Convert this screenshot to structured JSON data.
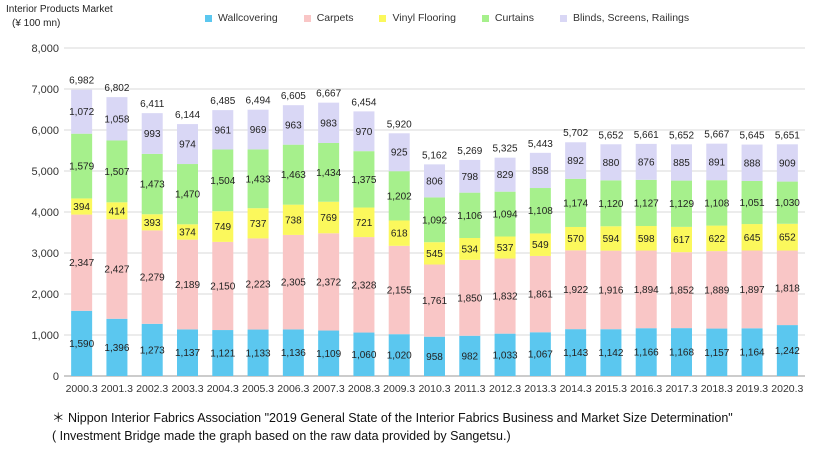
{
  "chart_data": {
    "type": "bar",
    "stacked": true,
    "title": "Interior Products Market",
    "unit": "(¥ 100 mn)",
    "categories": [
      "2000.3",
      "2001.3",
      "2002.3",
      "2003.3",
      "2004.3",
      "2005.3",
      "2006.3",
      "2007.3",
      "2008.3",
      "2009.3",
      "2010.3",
      "2011.3",
      "2012.3",
      "2013.3",
      "2014.3",
      "2015.3",
      "2016.3",
      "2017.3",
      "2018.3",
      "2019.3",
      "2020.3"
    ],
    "series": [
      {
        "name": "Wallcovering",
        "color": "#5bc7ef",
        "values": [
          1590,
          1396,
          1273,
          1137,
          1121,
          1133,
          1136,
          1109,
          1060,
          1020,
          958,
          982,
          1033,
          1067,
          1143,
          1142,
          1166,
          1168,
          1157,
          1164,
          1242
        ]
      },
      {
        "name": "Carpets",
        "color": "#f9c6c6",
        "values": [
          2347,
          2427,
          2279,
          2189,
          2150,
          2223,
          2305,
          2372,
          2328,
          2155,
          1761,
          1850,
          1832,
          1861,
          1922,
          1916,
          1894,
          1852,
          1889,
          1897,
          1818
        ]
      },
      {
        "name": "Vinyl Flooring",
        "color": "#fbf85c",
        "values": [
          394,
          414,
          393,
          374,
          749,
          737,
          738,
          769,
          721,
          618,
          545,
          534,
          537,
          549,
          570,
          594,
          598,
          617,
          622,
          645,
          652
        ]
      },
      {
        "name": "Curtains",
        "color": "#a6f08c",
        "values": [
          1579,
          1507,
          1473,
          1470,
          1504,
          1433,
          1463,
          1434,
          1375,
          1202,
          1092,
          1106,
          1094,
          1108,
          1174,
          1120,
          1127,
          1129,
          1108,
          1051,
          1030
        ]
      },
      {
        "name": "Blinds, Screens, Railings",
        "color": "#d9d7f5",
        "values": [
          1072,
          1058,
          993,
          974,
          961,
          969,
          963,
          983,
          970,
          925,
          806,
          798,
          829,
          858,
          892,
          880,
          876,
          885,
          891,
          888,
          909
        ]
      }
    ],
    "totals": [
      6982,
      6802,
      6411,
      6144,
      6485,
      6494,
      6605,
      6667,
      6454,
      5920,
      5162,
      5269,
      5325,
      5443,
      5702,
      5652,
      5661,
      5652,
      5667,
      5645,
      5651
    ],
    "ylim": [
      0,
      8000
    ],
    "yticks": [
      0,
      1000,
      2000,
      3000,
      4000,
      5000,
      6000,
      7000,
      8000
    ],
    "ytick_labels": [
      "0",
      "1,000",
      "2,000",
      "3,000",
      "4,000",
      "5,000",
      "6,000",
      "7,000",
      "8,000"
    ],
    "grid": true,
    "legend_position": "top"
  },
  "notes": [
    "＊ Nippon Interior Fabrics Association \"2019 General State of the Interior Fabrics Business and Market Size Determination\"",
    "( Investment Bridge made the graph based on the raw data provided by Sangetsu.)"
  ]
}
